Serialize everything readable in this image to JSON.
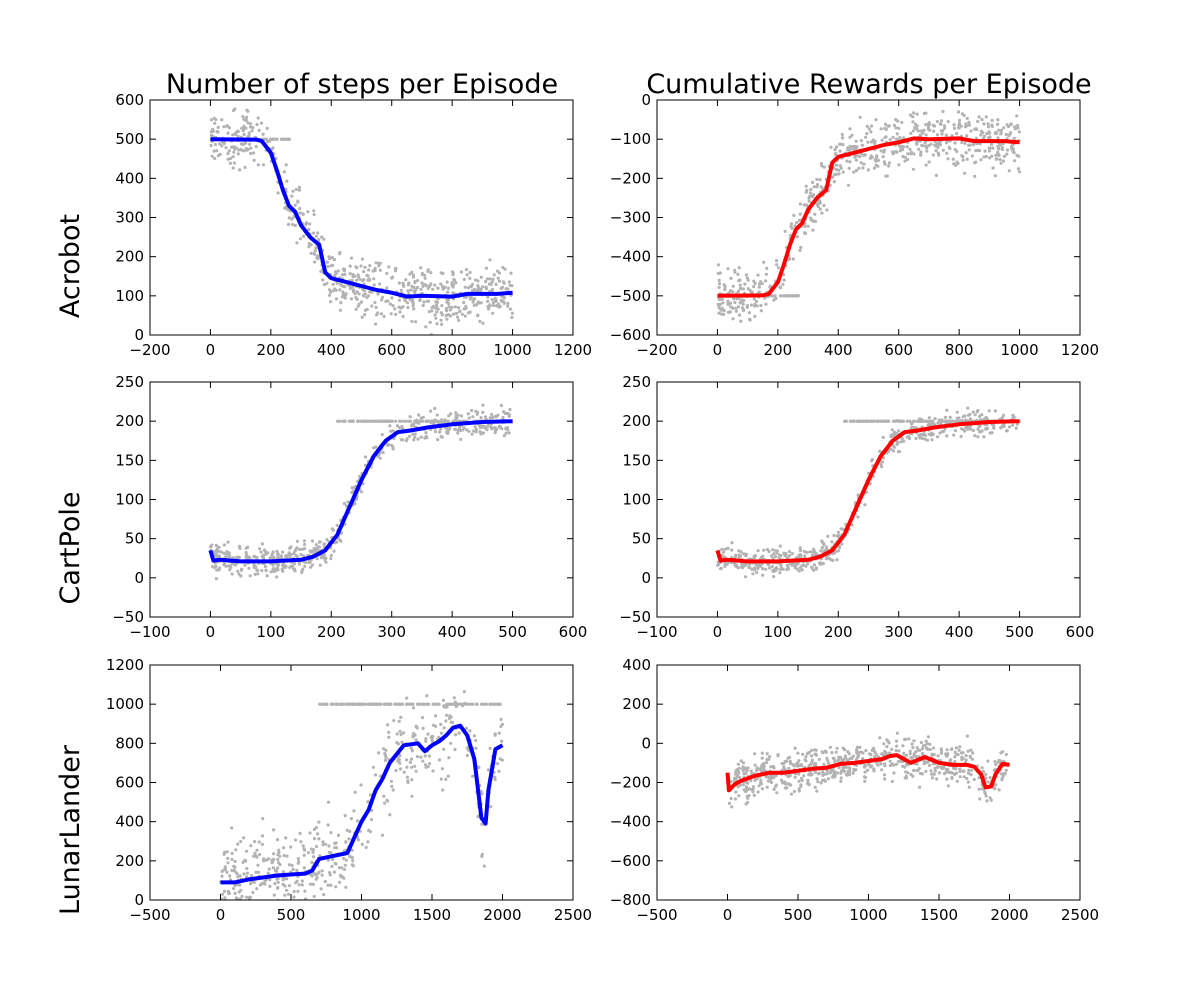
{
  "column_titles": [
    "Number of steps per Episode",
    "Cumulative Rewards per Episode"
  ],
  "row_labels": [
    "Acrobot",
    "CartPole",
    "LunarLander"
  ],
  "colors": {
    "raw_points": "#b3b3b3",
    "steps_line": "#0000ff",
    "reward_line": "#ff0000"
  },
  "chart_data": [
    {
      "type": "line",
      "row": "Acrobot",
      "title": "Number of steps per Episode",
      "xlim": [
        -200,
        1200
      ],
      "ylim": [
        0,
        600
      ],
      "x_ticks": [
        -200,
        0,
        200,
        400,
        600,
        800,
        1000,
        1200
      ],
      "y_ticks": [
        0,
        100,
        200,
        300,
        400,
        500,
        600
      ],
      "grid": false,
      "raw_scatter": {
        "x_range": [
          0,
          1000
        ],
        "trend": "follows smoothed line",
        "spread": 60,
        "plateau": {
          "value": 500,
          "x_range": [
            150,
            270
          ]
        }
      },
      "series": [
        {
          "color": "blue",
          "x": [
            0,
            150,
            170,
            200,
            220,
            240,
            260,
            280,
            300,
            330,
            360,
            380,
            400,
            450,
            500,
            550,
            600,
            650,
            700,
            800,
            850,
            900,
            950,
            1000
          ],
          "values": [
            500,
            499,
            495,
            465,
            420,
            370,
            330,
            315,
            280,
            250,
            230,
            160,
            145,
            135,
            125,
            115,
            108,
            98,
            100,
            98,
            105,
            105,
            105,
            108
          ]
        }
      ]
    },
    {
      "type": "line",
      "row": "Acrobot",
      "title": "Cumulative Rewards per Episode",
      "xlim": [
        -200,
        1200
      ],
      "ylim": [
        -600,
        0
      ],
      "x_ticks": [
        -200,
        0,
        200,
        400,
        600,
        800,
        1000,
        1200
      ],
      "y_ticks": [
        -600,
        -500,
        -400,
        -300,
        -200,
        -100,
        0
      ],
      "grid": false,
      "raw_scatter": {
        "x_range": [
          0,
          1000
        ],
        "trend": "follows smoothed line",
        "spread": 60,
        "plateau": {
          "value": -500,
          "x_range": [
            150,
            270
          ]
        }
      },
      "series": [
        {
          "color": "red",
          "x": [
            0,
            150,
            170,
            200,
            220,
            240,
            260,
            280,
            300,
            330,
            360,
            380,
            400,
            450,
            500,
            550,
            600,
            650,
            700,
            800,
            850,
            900,
            950,
            1000
          ],
          "values": [
            -500,
            -499,
            -495,
            -465,
            -420,
            -370,
            -330,
            -315,
            -280,
            -250,
            -230,
            -160,
            -145,
            -135,
            -125,
            -115,
            -108,
            -98,
            -100,
            -98,
            -105,
            -105,
            -105,
            -108
          ]
        }
      ]
    },
    {
      "type": "line",
      "row": "CartPole",
      "title": "",
      "xlim": [
        -100,
        600
      ],
      "ylim": [
        -50,
        250
      ],
      "x_ticks": [
        -100,
        0,
        100,
        200,
        300,
        400,
        500,
        600
      ],
      "y_ticks": [
        -50,
        0,
        50,
        100,
        150,
        200,
        250
      ],
      "grid": false,
      "raw_scatter": {
        "x_range": [
          0,
          500
        ],
        "trend": "follows smoothed line",
        "spread": 15,
        "plateau": {
          "value": 200,
          "x_range": [
            210,
            500
          ]
        }
      },
      "series": [
        {
          "color": "blue",
          "x": [
            0,
            5,
            15,
            50,
            100,
            150,
            170,
            190,
            210,
            230,
            250,
            270,
            290,
            310,
            330,
            360,
            400,
            450,
            500
          ],
          "values": [
            35,
            22,
            23,
            21,
            21,
            23,
            27,
            35,
            55,
            90,
            125,
            155,
            175,
            186,
            188,
            192,
            196,
            199,
            200
          ]
        }
      ]
    },
    {
      "type": "line",
      "row": "CartPole",
      "title": "",
      "xlim": [
        -100,
        600
      ],
      "ylim": [
        -50,
        250
      ],
      "x_ticks": [
        -100,
        0,
        100,
        200,
        300,
        400,
        500,
        600
      ],
      "y_ticks": [
        -50,
        0,
        50,
        100,
        150,
        200,
        250
      ],
      "grid": false,
      "raw_scatter": {
        "x_range": [
          0,
          500
        ],
        "trend": "follows smoothed line",
        "spread": 15,
        "plateau": {
          "value": 200,
          "x_range": [
            210,
            500
          ]
        }
      },
      "series": [
        {
          "color": "red",
          "x": [
            0,
            5,
            15,
            50,
            100,
            150,
            170,
            190,
            210,
            230,
            250,
            270,
            290,
            310,
            330,
            360,
            400,
            450,
            500
          ],
          "values": [
            35,
            22,
            23,
            21,
            21,
            23,
            27,
            35,
            55,
            90,
            125,
            155,
            175,
            186,
            188,
            192,
            196,
            199,
            200
          ]
        }
      ]
    },
    {
      "type": "line",
      "row": "LunarLander",
      "title": "",
      "xlim": [
        -500,
        2500
      ],
      "ylim": [
        0,
        1200
      ],
      "x_ticks": [
        -500,
        0,
        500,
        1000,
        1500,
        2000,
        2500
      ],
      "y_ticks": [
        0,
        200,
        400,
        600,
        800,
        1000,
        1200
      ],
      "grid": false,
      "raw_scatter": {
        "x_range": [
          0,
          2000
        ],
        "trend": "follows smoothed line",
        "spread": 180,
        "plateau": {
          "value": 1000,
          "x_range": [
            700,
            2000
          ]
        }
      },
      "series": [
        {
          "color": "blue",
          "x": [
            0,
            100,
            200,
            300,
            400,
            500,
            600,
            650,
            700,
            800,
            900,
            950,
            1000,
            1050,
            1100,
            1150,
            1200,
            1300,
            1400,
            1450,
            1500,
            1550,
            1600,
            1650,
            1700,
            1750,
            1800,
            1850,
            1880,
            1900,
            1950,
            2000
          ],
          "values": [
            90,
            90,
            105,
            115,
            125,
            130,
            135,
            150,
            210,
            225,
            240,
            320,
            400,
            460,
            560,
            620,
            700,
            790,
            800,
            760,
            790,
            810,
            840,
            880,
            890,
            840,
            720,
            420,
            390,
            560,
            770,
            790
          ]
        }
      ]
    },
    {
      "type": "line",
      "row": "LunarLander",
      "title": "",
      "xlim": [
        -500,
        2500
      ],
      "ylim": [
        -800,
        400
      ],
      "x_ticks": [
        -500,
        0,
        500,
        1000,
        1500,
        2000,
        2500
      ],
      "y_ticks": [
        -800,
        -600,
        -400,
        -200,
        0,
        200,
        400
      ],
      "grid": false,
      "raw_scatter": {
        "x_range": [
          0,
          2000
        ],
        "trend": "follows smoothed line",
        "spread": 90
      },
      "series": [
        {
          "color": "red",
          "x": [
            0,
            10,
            50,
            100,
            200,
            300,
            400,
            500,
            600,
            700,
            800,
            900,
            1000,
            1100,
            1150,
            1200,
            1300,
            1400,
            1500,
            1600,
            1700,
            1750,
            1800,
            1830,
            1870,
            1900,
            1950,
            2000
          ],
          "values": [
            -150,
            -240,
            -210,
            -190,
            -165,
            -150,
            -150,
            -140,
            -130,
            -125,
            -105,
            -100,
            -90,
            -80,
            -65,
            -60,
            -100,
            -70,
            -100,
            -110,
            -110,
            -120,
            -160,
            -225,
            -220,
            -160,
            -105,
            -110
          ]
        }
      ]
    }
  ]
}
